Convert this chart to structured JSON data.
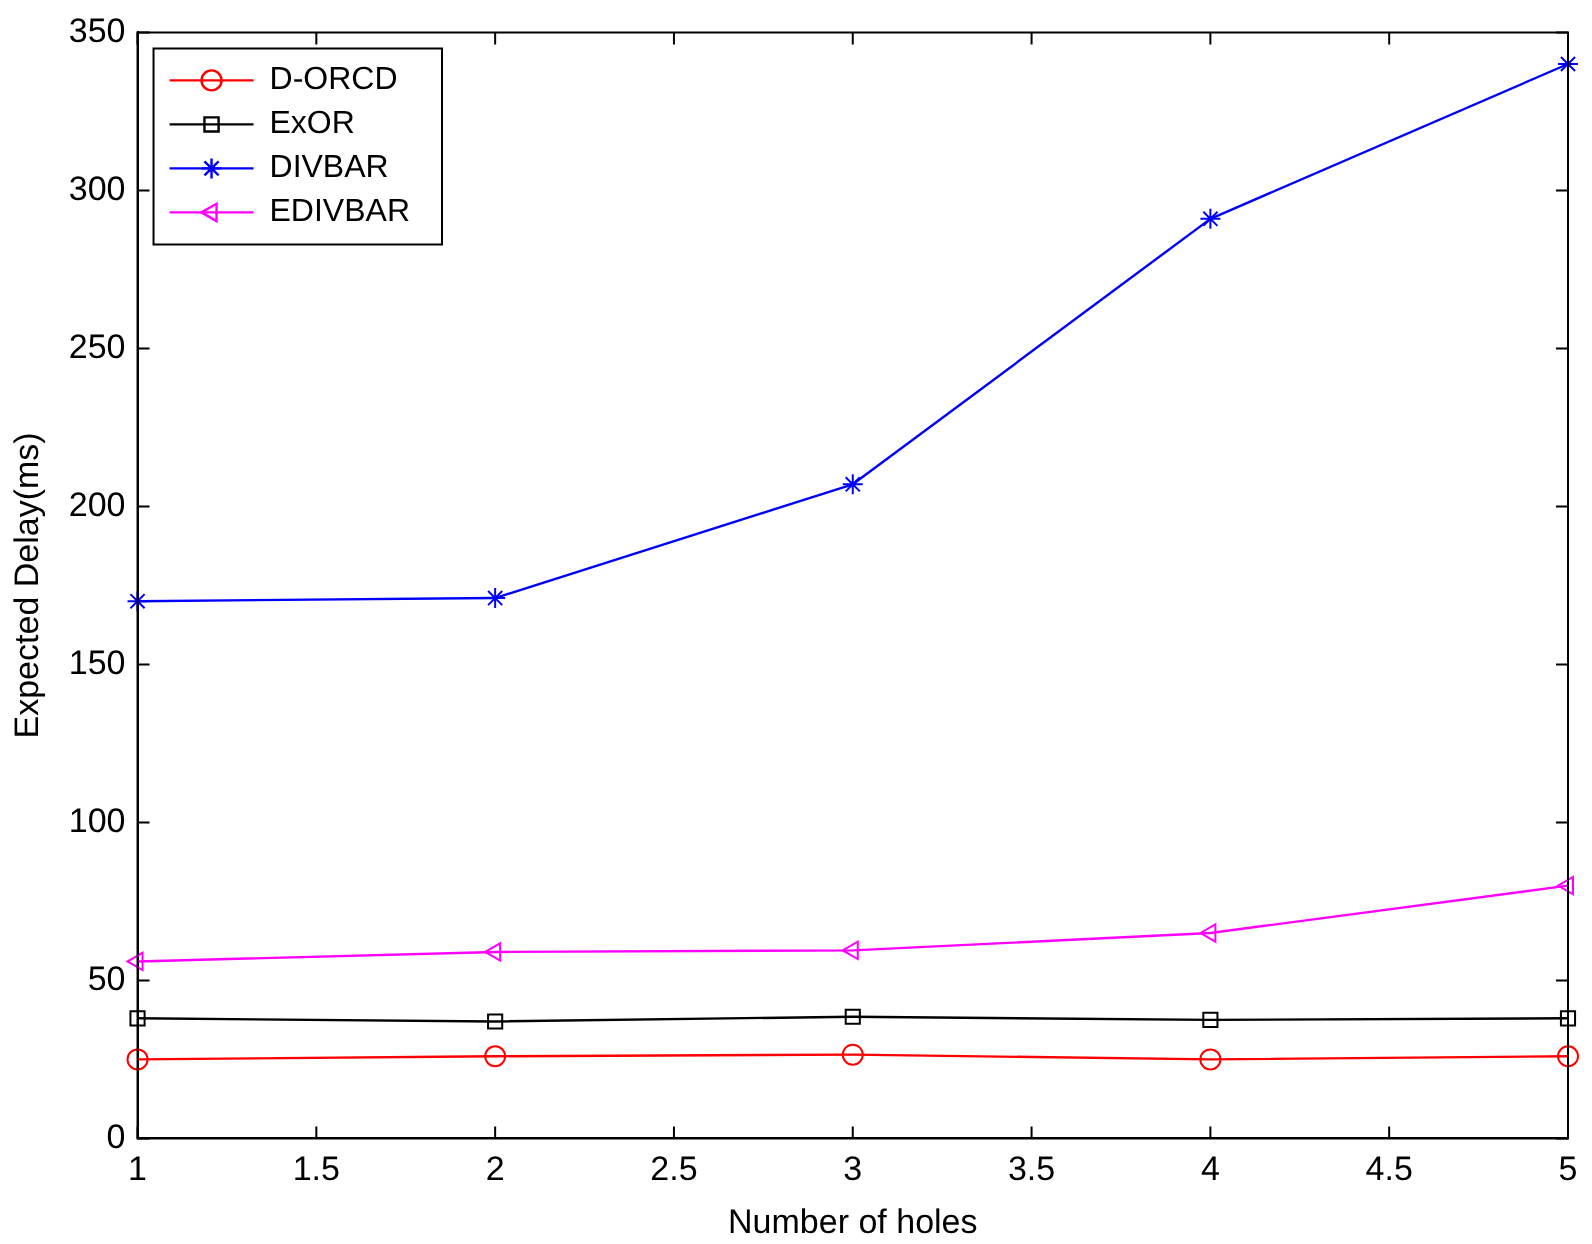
{
  "chart_data": {
    "type": "line",
    "xlabel": "Number of holes",
    "ylabel": "Expected Delay(ms)",
    "x": [
      1,
      2,
      3,
      4,
      5
    ],
    "series": [
      {
        "name": "D-ORCD",
        "color": "#ff0000",
        "marker": "circle",
        "values": [
          25,
          26,
          26.5,
          25,
          26
        ]
      },
      {
        "name": "ExOR",
        "color": "#000000",
        "marker": "square",
        "values": [
          38,
          37,
          38.5,
          37.5,
          38
        ]
      },
      {
        "name": "DIVBAR",
        "color": "#0000ff",
        "marker": "cross",
        "values": [
          170,
          171,
          207,
          291,
          340
        ]
      },
      {
        "name": "EDIVBAR",
        "color": "#ff00ff",
        "marker": "triangle",
        "values": [
          56,
          59,
          59.5,
          65,
          80
        ]
      }
    ],
    "xlim": [
      1,
      5
    ],
    "xticks": [
      1,
      1.5,
      2,
      2.5,
      3,
      3.5,
      4,
      4.5,
      5
    ],
    "ylim": [
      0,
      350
    ],
    "yticks": [
      0,
      50,
      100,
      150,
      200,
      250,
      300,
      350
    ],
    "grid": false,
    "legend": "top left",
    "line_style": "solid"
  }
}
